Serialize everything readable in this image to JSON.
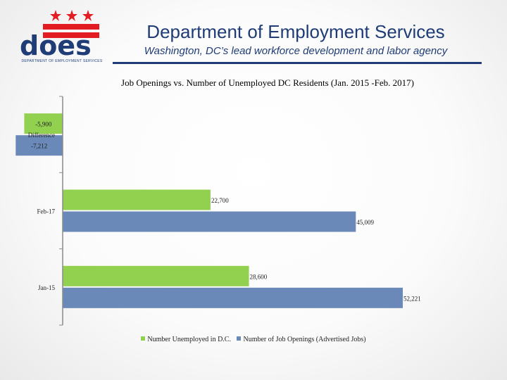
{
  "header": {
    "title": "Department of Employment Services",
    "subtitle": "Washington, DC’s lead workforce development and labor agency",
    "logo_text": "does",
    "logo_caption": "DEPARTMENT OF EMPLOYMENT SERVICES",
    "colors": {
      "brand_blue": "#1f3c77",
      "flag_red": "#e31b23"
    }
  },
  "chart_data": {
    "type": "bar",
    "orientation": "horizontal",
    "title": "Job Openings vs. Number of Unemployed DC Residents (Jan. 2015 -Feb. 2017)",
    "categories": [
      "Difference",
      "Feb-17",
      "Jan-15"
    ],
    "series": [
      {
        "name": "Number Unemployed in D.C.",
        "color": "#92d050",
        "values": [
          -5900,
          22700,
          28600
        ],
        "labels": [
          "-5,900",
          "22,700",
          "28,600"
        ]
      },
      {
        "name": "Number of Job Openings (Advertised Jobs)",
        "color": "#6a89b8",
        "values": [
          -7212,
          45009,
          52221
        ],
        "labels": [
          "-7,212",
          "45,009",
          "52,221"
        ]
      }
    ],
    "legend_position": "bottom",
    "grid": false
  }
}
